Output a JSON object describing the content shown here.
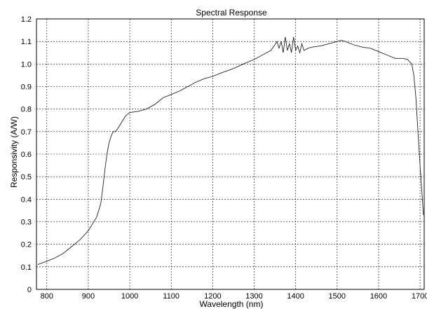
{
  "chart_data": {
    "type": "line",
    "title": "Spectral Response",
    "xlabel": "Wavelength  (nm)",
    "ylabel": "Responsivity (A/W)",
    "xlim": [
      775,
      1710
    ],
    "ylim": [
      0,
      1.2
    ],
    "grid": true,
    "x_ticks": [
      800,
      900,
      1000,
      1100,
      1200,
      1300,
      1400,
      1500,
      1600,
      1700
    ],
    "x_tick_labels": [
      "800",
      "900",
      "1000",
      "1100",
      "1200",
      "1300",
      "1400",
      "1500",
      "1600",
      "1700"
    ],
    "y_ticks": [
      0,
      0.1,
      0.2,
      0.3,
      0.4,
      0.5,
      0.6,
      0.7,
      0.8,
      0.9,
      1.0,
      1.1,
      1.2
    ],
    "y_tick_labels": [
      "0",
      "0.1",
      "0.2",
      "0.3",
      "0.4",
      "0.5",
      "0.6",
      "0.7",
      "0.8",
      "0.9",
      "1.0",
      "1.1",
      "1.2"
    ],
    "series": [
      {
        "color": "#222222",
        "x": [
          778,
          800,
          820,
          840,
          860,
          880,
          900,
          910,
          920,
          930,
          935,
          940,
          945,
          950,
          955,
          960,
          965,
          970,
          980,
          990,
          1000,
          1020,
          1040,
          1060,
          1080,
          1100,
          1120,
          1130,
          1140,
          1160,
          1180,
          1200,
          1220,
          1250,
          1280,
          1300,
          1320,
          1340,
          1350,
          1355,
          1360,
          1365,
          1370,
          1375,
          1380,
          1385,
          1390,
          1395,
          1400,
          1405,
          1410,
          1415,
          1420,
          1430,
          1440,
          1460,
          1480,
          1500,
          1510,
          1520,
          1540,
          1560,
          1580,
          1600,
          1620,
          1640,
          1660,
          1670,
          1680,
          1685,
          1690,
          1695,
          1700,
          1705,
          1708
        ],
        "y": [
          0.11,
          0.125,
          0.14,
          0.16,
          0.19,
          0.22,
          0.26,
          0.29,
          0.32,
          0.38,
          0.45,
          0.53,
          0.6,
          0.65,
          0.68,
          0.7,
          0.7,
          0.71,
          0.74,
          0.77,
          0.785,
          0.79,
          0.8,
          0.82,
          0.85,
          0.865,
          0.88,
          0.89,
          0.9,
          0.92,
          0.935,
          0.945,
          0.96,
          0.98,
          1.005,
          1.02,
          1.04,
          1.06,
          1.085,
          1.1,
          1.07,
          1.1,
          1.05,
          1.12,
          1.06,
          1.09,
          1.05,
          1.12,
          1.06,
          1.08,
          1.05,
          1.09,
          1.06,
          1.07,
          1.075,
          1.08,
          1.09,
          1.1,
          1.105,
          1.1,
          1.085,
          1.075,
          1.07,
          1.055,
          1.04,
          1.025,
          1.025,
          1.02,
          1.0,
          0.95,
          0.85,
          0.7,
          0.55,
          0.42,
          0.33
        ]
      }
    ]
  }
}
